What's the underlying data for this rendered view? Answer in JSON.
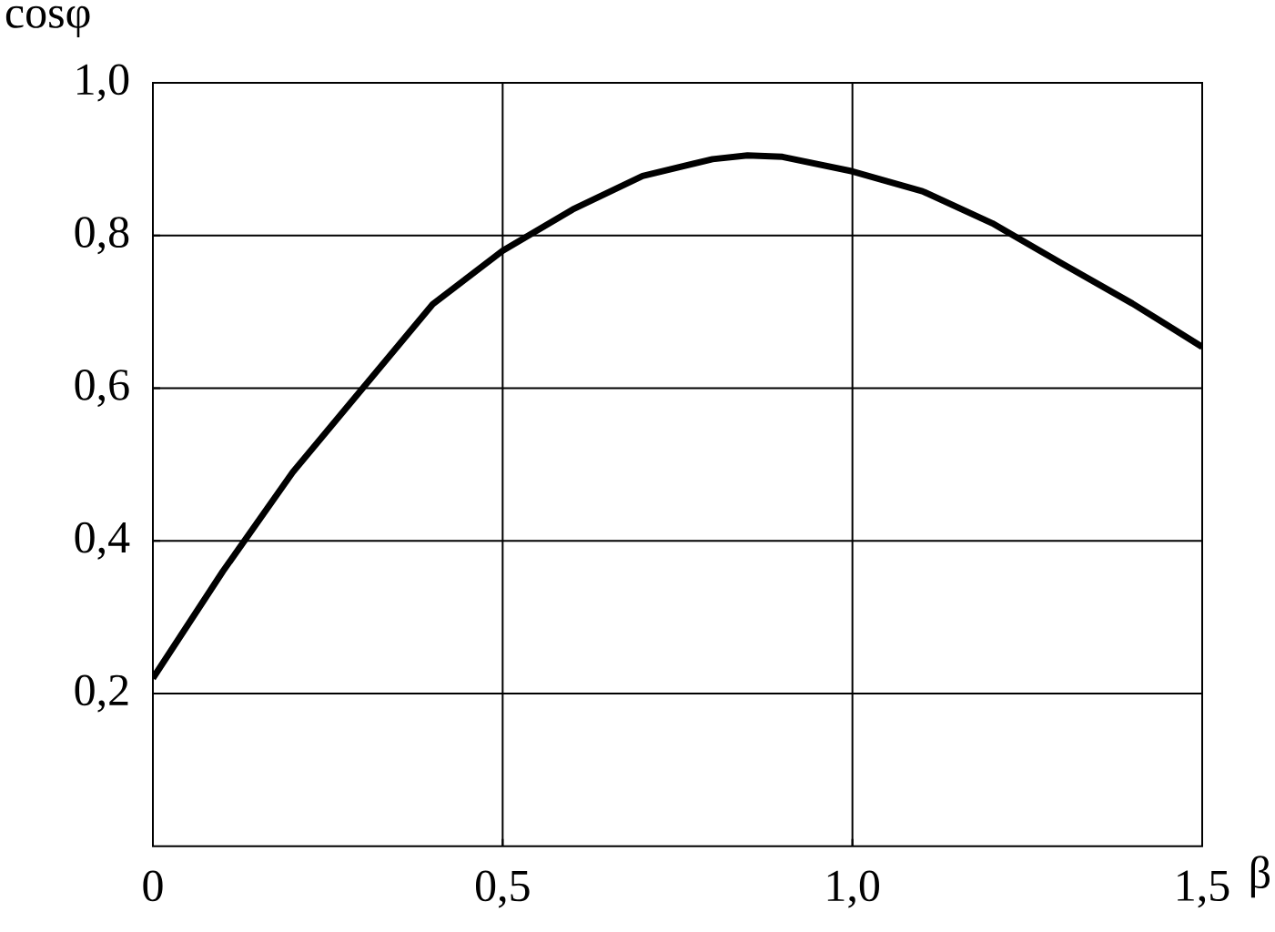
{
  "chart_data": {
    "type": "line",
    "xlabel": "β",
    "ylabel": "cosφ",
    "x": [
      0,
      0.1,
      0.2,
      0.3,
      0.4,
      0.5,
      0.6,
      0.7,
      0.8,
      0.85,
      0.9,
      1.0,
      1.1,
      1.2,
      1.3,
      1.4,
      1.5
    ],
    "series": [
      {
        "color": "#000000",
        "values": [
          0.22,
          0.36,
          0.49,
          0.6,
          0.71,
          0.78,
          0.834,
          0.878,
          0.9,
          0.905,
          0.903,
          0.884,
          0.858,
          0.816,
          0.763,
          0.711,
          0.654
        ]
      }
    ],
    "xlim": [
      0,
      1.5
    ],
    "ylim": [
      0,
      1.0
    ],
    "xticks": [
      0,
      {
        "value": 0.5,
        "label": "0,5"
      },
      {
        "value": 1.0,
        "label": "1,0"
      },
      {
        "value": 1.5,
        "label": "1,5"
      }
    ],
    "yticks": [
      {
        "value": 0.2,
        "label": "0,2"
      },
      {
        "value": 0.4,
        "label": "0,4"
      },
      {
        "value": 0.6,
        "label": "0,6"
      },
      {
        "value": 0.8,
        "label": "0,8"
      },
      {
        "value": 1.0,
        "label": "1,0"
      }
    ],
    "grid": true
  }
}
